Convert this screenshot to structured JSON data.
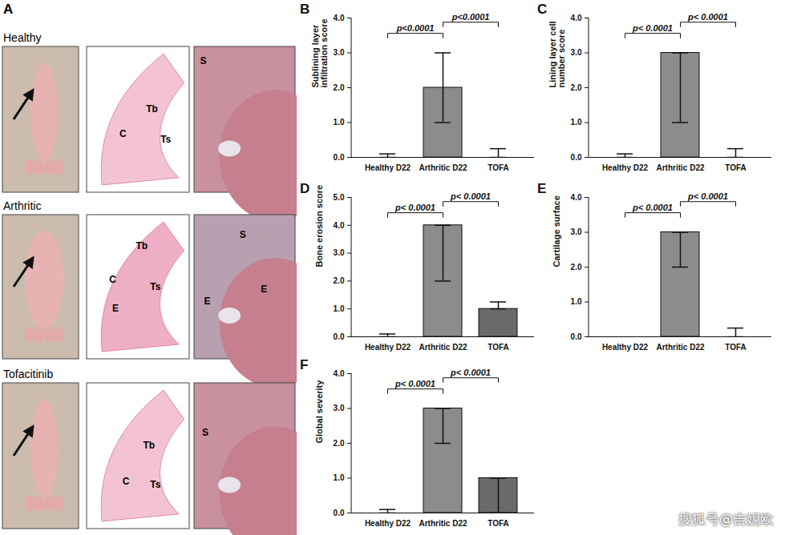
{
  "panel_a": {
    "label": "A",
    "rows": [
      {
        "name": "Healthy",
        "section_labels": [
          "Tb",
          "C",
          "Ts"
        ],
        "detail_labels": [
          "S"
        ]
      },
      {
        "name": "Arthritic",
        "section_labels": [
          "Tb",
          "C",
          "Ts",
          "E"
        ],
        "detail_labels": [
          "S",
          "E",
          "E"
        ]
      },
      {
        "name": "Tofacitinib",
        "section_labels": [
          "Tb",
          "C",
          "Ts"
        ],
        "detail_labels": [
          "S"
        ]
      }
    ]
  },
  "watermark": "搜狐号@吉妮欧",
  "chart_data": [
    {
      "type": "bar",
      "panel": "B",
      "ylabel": "Sublining layer infiltration score",
      "categories": [
        "Healthy D22",
        "Arthritic D22",
        "TOFA"
      ],
      "values": [
        0,
        2,
        0
      ],
      "error_low": [
        0,
        1,
        0
      ],
      "error_high": [
        0.1,
        3,
        0.25
      ],
      "colors": [
        "#8c8c8c",
        "#8c8c8c",
        "#6a6a6a"
      ],
      "ylim": [
        0,
        4
      ],
      "yticks": [
        0,
        1,
        2,
        3,
        4
      ],
      "annotations": [
        {
          "from": "Healthy D22",
          "to": "Arthritic D22",
          "text": "p<0.0001"
        },
        {
          "from": "Arthritic D22",
          "to": "TOFA",
          "text": "p<0.0001"
        }
      ]
    },
    {
      "type": "bar",
      "panel": "C",
      "ylabel": "Lining layer cell number score",
      "categories": [
        "Healthy D22",
        "Arthritic D22",
        "TOFA"
      ],
      "values": [
        0,
        3,
        0
      ],
      "error_low": [
        0,
        1,
        0
      ],
      "error_high": [
        0.1,
        3,
        0.25
      ],
      "colors": [
        "#8c8c8c",
        "#8c8c8c",
        "#6a6a6a"
      ],
      "ylim": [
        0,
        4
      ],
      "yticks": [
        0,
        1,
        2,
        3,
        4
      ],
      "annotations": [
        {
          "from": "Healthy D22",
          "to": "Arthritic D22",
          "text": "p< 0.0001"
        },
        {
          "from": "Arthritic D22",
          "to": "TOFA",
          "text": "p< 0.0001"
        }
      ]
    },
    {
      "type": "bar",
      "panel": "D",
      "ylabel": "Bone erosion score",
      "categories": [
        "Healthy D22",
        "Arthritic D22",
        "TOFA"
      ],
      "values": [
        0,
        4,
        1
      ],
      "error_low": [
        0,
        2,
        1
      ],
      "error_high": [
        0.1,
        4,
        1.25
      ],
      "colors": [
        "#8c8c8c",
        "#8c8c8c",
        "#6a6a6a"
      ],
      "ylim": [
        0,
        5
      ],
      "yticks": [
        0,
        1,
        2,
        3,
        4,
        5
      ],
      "annotations": [
        {
          "from": "Healthy D22",
          "to": "Arthritic D22",
          "text": "p< 0.0001"
        },
        {
          "from": "Arthritic D22",
          "to": "TOFA",
          "text": "p< 0.0001"
        }
      ]
    },
    {
      "type": "bar",
      "panel": "E",
      "ylabel": "Cartilage surface",
      "categories": [
        "Healthy D22",
        "Arthritic D22",
        "TOFA"
      ],
      "values": [
        0,
        3,
        0
      ],
      "error_low": [
        0,
        2,
        0
      ],
      "error_high": [
        0,
        3,
        0.25
      ],
      "colors": [
        "#8c8c8c",
        "#8c8c8c",
        "#6a6a6a"
      ],
      "ylim": [
        0,
        4
      ],
      "yticks": [
        0,
        1,
        2,
        3,
        4
      ],
      "annotations": [
        {
          "from": "Healthy D22",
          "to": "Arthritic D22",
          "text": "p< 0.0001"
        },
        {
          "from": "Arthritic D22",
          "to": "TOFA",
          "text": "p< 0.0001"
        }
      ]
    },
    {
      "type": "bar",
      "panel": "F",
      "ylabel": "Global severity",
      "categories": [
        "Healthy D22",
        "Arthritic D22",
        "TOFA"
      ],
      "values": [
        0,
        3,
        1
      ],
      "error_low": [
        0,
        2,
        0
      ],
      "error_high": [
        0.1,
        3,
        1
      ],
      "colors": [
        "#8c8c8c",
        "#8c8c8c",
        "#6a6a6a"
      ],
      "ylim": [
        0,
        4
      ],
      "yticks": [
        0,
        1,
        2,
        3,
        4
      ],
      "annotations": [
        {
          "from": "Healthy D22",
          "to": "Arthritic D22",
          "text": "p< 0.0001"
        },
        {
          "from": "Arthritic D22",
          "to": "TOFA",
          "text": "p< 0.0001"
        }
      ]
    }
  ]
}
